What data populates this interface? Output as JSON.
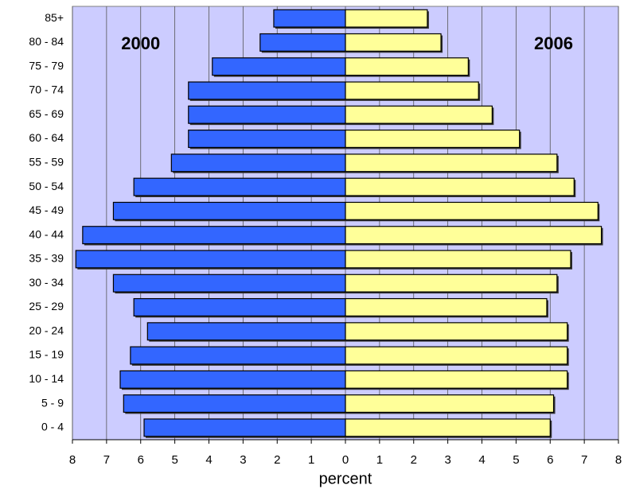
{
  "chart_data": {
    "type": "pyramid",
    "xlabel": "percent",
    "categories": [
      "0 - 4",
      "5 - 9",
      "10 - 14",
      "15 - 19",
      "20 - 24",
      "25 - 29",
      "30 - 34",
      "35 - 39",
      "40 - 44",
      "45 - 49",
      "50 - 54",
      "55 - 59",
      "60 - 64",
      "65 - 69",
      "70 - 74",
      "75 - 79",
      "80 - 84",
      "85+"
    ],
    "series": [
      {
        "name": "2000",
        "color": "#3366ff",
        "values": [
          -5.9,
          -6.5,
          -6.6,
          -6.3,
          -5.8,
          -6.2,
          -6.8,
          -7.9,
          -7.7,
          -6.8,
          -6.2,
          -5.1,
          -4.6,
          -4.6,
          -4.6,
          -3.9,
          -2.5,
          -2.1
        ]
      },
      {
        "name": "2006",
        "color": "#ffff99",
        "values": [
          6.0,
          6.1,
          6.5,
          6.5,
          6.5,
          5.9,
          6.2,
          6.6,
          7.5,
          7.4,
          6.7,
          6.2,
          5.1,
          4.3,
          3.9,
          3.6,
          2.8,
          2.4
        ]
      }
    ],
    "xlim": [
      -8,
      8
    ],
    "xticks": [
      {
        "value": -8,
        "label": "8"
      },
      {
        "value": -7,
        "label": "7"
      },
      {
        "value": -6,
        "label": "6"
      },
      {
        "value": -5,
        "label": "5"
      },
      {
        "value": -4,
        "label": "4"
      },
      {
        "value": -3,
        "label": "3"
      },
      {
        "value": -2,
        "label": "2"
      },
      {
        "value": -1,
        "label": "1"
      },
      0,
      1,
      2,
      3,
      4,
      5,
      6,
      7,
      8
    ],
    "negative_tick_color": "#ff0000",
    "plot_background": "#ccccff",
    "grid": true
  }
}
